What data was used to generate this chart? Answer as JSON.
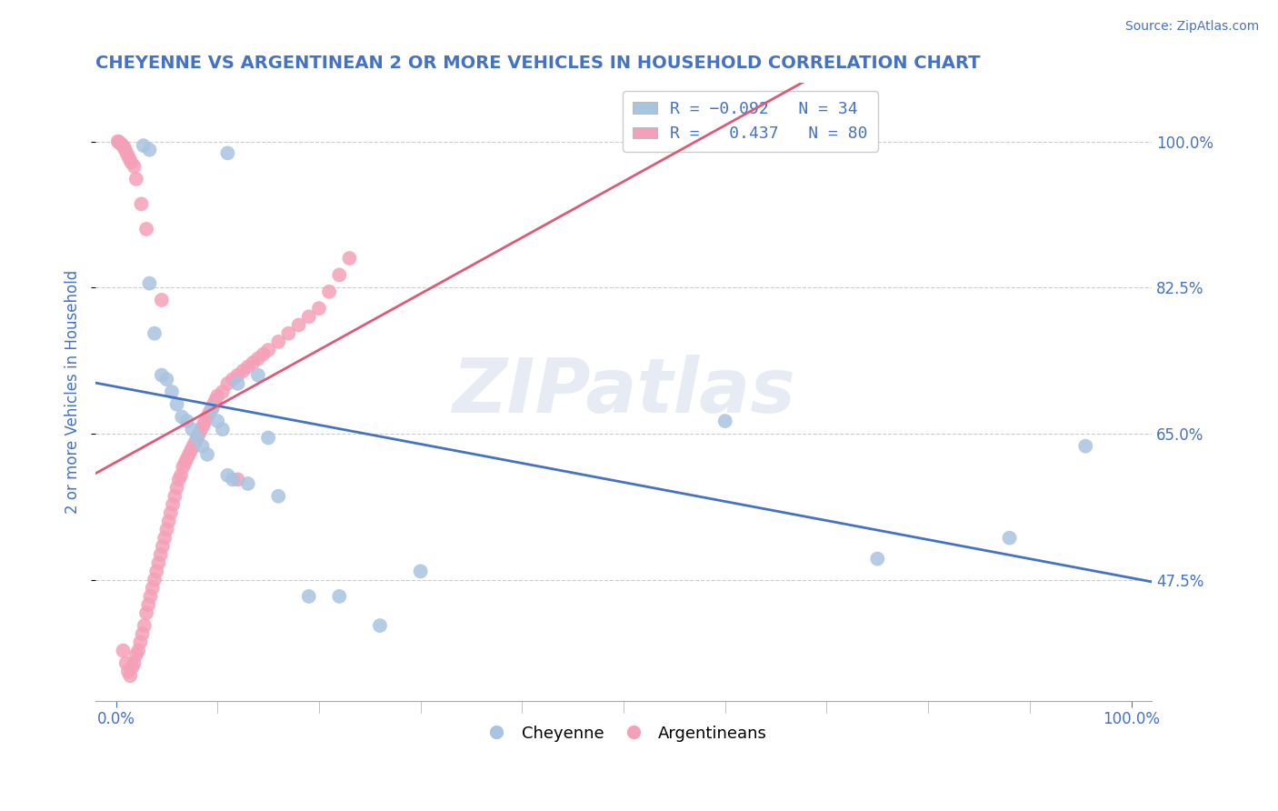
{
  "title": "CHEYENNE VS ARGENTINEAN 2 OR MORE VEHICLES IN HOUSEHOLD CORRELATION CHART",
  "source": "Source: ZipAtlas.com",
  "ylabel": "2 or more Vehicles in Household",
  "title_color": "#4472c4",
  "source_color": "#4472c4",
  "cheyenne_color": "#a8c4e0",
  "argentinean_color": "#f4a0b8",
  "cheyenne_line_color": "#4472c4",
  "argentinean_line_color": "#e05878",
  "watermark": "ZIPatlas",
  "ytick_values": [
    0.475,
    0.65,
    0.825,
    1.0
  ],
  "ytick_labels": [
    "47.5%",
    "65.0%",
    "82.5%",
    "100.0%"
  ],
  "xtick_values": [
    0.0,
    1.0
  ],
  "xtick_labels": [
    "0.0%",
    "100.0%"
  ],
  "xmin": -0.02,
  "xmax": 1.02,
  "ymin": 0.33,
  "ymax": 1.07,
  "cheyenne_x": [
    0.027,
    0.033,
    0.11,
    0.033,
    0.038,
    0.045,
    0.05,
    0.055,
    0.06,
    0.065,
    0.07,
    0.075,
    0.08,
    0.085,
    0.09,
    0.095,
    0.1,
    0.105,
    0.11,
    0.115,
    0.12,
    0.13,
    0.14,
    0.15,
    0.16,
    0.19,
    0.22,
    0.26,
    0.3,
    0.6,
    0.75,
    0.88,
    0.955
  ],
  "cheyenne_y": [
    0.995,
    0.99,
    0.986,
    0.83,
    0.77,
    0.72,
    0.715,
    0.7,
    0.685,
    0.67,
    0.665,
    0.655,
    0.645,
    0.635,
    0.625,
    0.68,
    0.665,
    0.655,
    0.6,
    0.595,
    0.71,
    0.59,
    0.72,
    0.645,
    0.575,
    0.455,
    0.455,
    0.42,
    0.485,
    0.665,
    0.5,
    0.525,
    0.635
  ],
  "argentinean_x": [
    0.007,
    0.01,
    0.012,
    0.014,
    0.016,
    0.018,
    0.02,
    0.022,
    0.024,
    0.026,
    0.028,
    0.03,
    0.032,
    0.034,
    0.036,
    0.038,
    0.04,
    0.042,
    0.044,
    0.046,
    0.048,
    0.05,
    0.052,
    0.054,
    0.056,
    0.058,
    0.06,
    0.062,
    0.064,
    0.066,
    0.068,
    0.07,
    0.072,
    0.074,
    0.076,
    0.078,
    0.08,
    0.082,
    0.084,
    0.086,
    0.088,
    0.09,
    0.092,
    0.094,
    0.096,
    0.098,
    0.1,
    0.105,
    0.11,
    0.115,
    0.12,
    0.125,
    0.13,
    0.135,
    0.14,
    0.145,
    0.15,
    0.16,
    0.17,
    0.18,
    0.19,
    0.2,
    0.21,
    0.22,
    0.23,
    0.12,
    0.045,
    0.03,
    0.025,
    0.02,
    0.018,
    0.015,
    0.013,
    0.011,
    0.009,
    0.008,
    0.006,
    0.004,
    0.003,
    0.002
  ],
  "argentinean_y": [
    0.39,
    0.375,
    0.365,
    0.36,
    0.37,
    0.375,
    0.385,
    0.39,
    0.4,
    0.41,
    0.42,
    0.435,
    0.445,
    0.455,
    0.465,
    0.475,
    0.485,
    0.495,
    0.505,
    0.515,
    0.525,
    0.535,
    0.545,
    0.555,
    0.565,
    0.575,
    0.585,
    0.595,
    0.6,
    0.61,
    0.615,
    0.62,
    0.625,
    0.63,
    0.635,
    0.64,
    0.645,
    0.65,
    0.655,
    0.66,
    0.665,
    0.67,
    0.675,
    0.68,
    0.685,
    0.69,
    0.695,
    0.7,
    0.71,
    0.715,
    0.72,
    0.725,
    0.73,
    0.735,
    0.74,
    0.745,
    0.75,
    0.76,
    0.77,
    0.78,
    0.79,
    0.8,
    0.82,
    0.84,
    0.86,
    0.595,
    0.81,
    0.895,
    0.925,
    0.955,
    0.97,
    0.975,
    0.98,
    0.985,
    0.99,
    0.993,
    0.996,
    0.998,
    0.999,
    1.0
  ]
}
